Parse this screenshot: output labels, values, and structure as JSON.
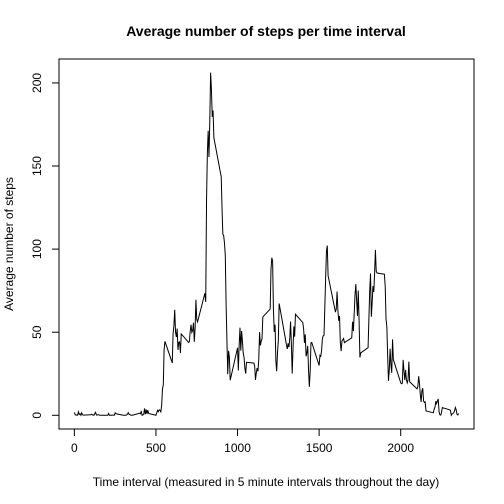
{
  "chart_data": {
    "type": "line",
    "title": "Average number of steps per time interval",
    "x_label": "Time interval (measured in 5 minute intervals throughout the day)",
    "y_label": "Average number of steps",
    "color": "#000000",
    "xlim": [
      -94.2,
      2449.2
    ],
    "xticks": [
      0,
      500,
      1000,
      1500,
      2000
    ],
    "ylim": [
      -8.25,
      214.4
    ],
    "yticks": [
      0,
      50,
      100,
      150,
      200
    ],
    "x": [
      0,
      5,
      10,
      15,
      20,
      25,
      30,
      35,
      40,
      45,
      50,
      55,
      100,
      105,
      110,
      115,
      120,
      125,
      130,
      135,
      140,
      145,
      150,
      155,
      200,
      205,
      210,
      215,
      220,
      225,
      230,
      235,
      240,
      245,
      250,
      255,
      300,
      305,
      310,
      315,
      320,
      325,
      330,
      335,
      340,
      345,
      350,
      355,
      400,
      405,
      410,
      415,
      420,
      425,
      430,
      435,
      440,
      445,
      450,
      455,
      500,
      505,
      510,
      515,
      520,
      525,
      530,
      535,
      540,
      545,
      550,
      555,
      600,
      605,
      610,
      615,
      620,
      625,
      630,
      635,
      640,
      645,
      650,
      655,
      700,
      705,
      710,
      715,
      720,
      725,
      730,
      735,
      740,
      745,
      750,
      755,
      800,
      805,
      810,
      815,
      820,
      825,
      830,
      835,
      840,
      845,
      850,
      855,
      900,
      905,
      910,
      915,
      920,
      925,
      930,
      935,
      940,
      945,
      950,
      955,
      1000,
      1005,
      1010,
      1015,
      1020,
      1025,
      1030,
      1035,
      1040,
      1045,
      1050,
      1055,
      1100,
      1105,
      1110,
      1115,
      1120,
      1125,
      1130,
      1135,
      1140,
      1145,
      1150,
      1155,
      1200,
      1205,
      1210,
      1215,
      1220,
      1225,
      1230,
      1235,
      1240,
      1245,
      1250,
      1255,
      1300,
      1305,
      1310,
      1315,
      1320,
      1325,
      1330,
      1335,
      1340,
      1345,
      1350,
      1355,
      1400,
      1405,
      1410,
      1415,
      1420,
      1425,
      1430,
      1435,
      1440,
      1445,
      1450,
      1455,
      1500,
      1505,
      1510,
      1515,
      1520,
      1525,
      1530,
      1535,
      1540,
      1545,
      1550,
      1555,
      1600,
      1605,
      1610,
      1615,
      1620,
      1625,
      1630,
      1635,
      1640,
      1645,
      1650,
      1655,
      1700,
      1705,
      1710,
      1715,
      1720,
      1725,
      1730,
      1735,
      1740,
      1745,
      1750,
      1755,
      1800,
      1805,
      1810,
      1815,
      1820,
      1825,
      1830,
      1835,
      1840,
      1845,
      1850,
      1855,
      1900,
      1905,
      1910,
      1915,
      1920,
      1925,
      1930,
      1935,
      1940,
      1945,
      1950,
      1955,
      2000,
      2005,
      2010,
      2015,
      2020,
      2025,
      2030,
      2035,
      2040,
      2045,
      2050,
      2055,
      2100,
      2105,
      2110,
      2115,
      2120,
      2125,
      2130,
      2135,
      2140,
      2145,
      2150,
      2155,
      2200,
      2205,
      2210,
      2215,
      2220,
      2225,
      2230,
      2235,
      2240,
      2245,
      2250,
      2255,
      2300,
      2305,
      2310,
      2315,
      2320,
      2325,
      2330,
      2335,
      2340,
      2345,
      2350,
      2355
    ],
    "values": [
      1.7,
      0.3,
      0.1,
      0.2,
      0.1,
      2.1,
      0.5,
      0.9,
      0,
      1.5,
      0.3,
      0.1,
      0.3,
      0.7,
      0.2,
      0.3,
      0,
      1.1,
      1.8,
      0.2,
      0.2,
      0.4,
      0.3,
      0,
      0,
      0,
      1.1,
      0,
      0,
      0.1,
      0,
      0.2,
      0,
      0,
      1.5,
      0.9,
      0,
      0,
      0,
      0,
      0.2,
      0.6,
      1.6,
      0.6,
      0.5,
      0.1,
      0,
      0,
      1.2,
      0.9,
      2.6,
      0,
      0.3,
      0.4,
      4.1,
      0.7,
      3.5,
      0.8,
      3.1,
      1.1,
      0,
      1.6,
      3,
      2.2,
      3.3,
      3,
      2.1,
      6.1,
      16,
      18.3,
      39.5,
      44.5,
      31.5,
      49.3,
      53.8,
      63.5,
      50,
      47.1,
      52.2,
      39.3,
      44,
      44.2,
      37.4,
      49,
      43.8,
      44.4,
      50.5,
      54.5,
      49.9,
      51,
      55.7,
      44.3,
      52.3,
      69.5,
      57.8,
      56.2,
      73.4,
      68.2,
      129.4,
      157.5,
      171.2,
      155.4,
      177.3,
      206.2,
      195.9,
      179.6,
      183.4,
      167,
      143.5,
      124,
      109.1,
      108.1,
      103.7,
      96,
      66.2,
      45.2,
      24.8,
      38.8,
      35,
      21.1,
      40.6,
      27,
      42.4,
      52.7,
      38.9,
      50.8,
      44.3,
      37.4,
      34.7,
      28.3,
      25.1,
      31.9,
      31.4,
      29.7,
      21.3,
      25.5,
      28.4,
      26.5,
      33.4,
      50,
      42,
      44.6,
      46,
      59.2,
      63.9,
      87.7,
      94.8,
      92.8,
      63.4,
      50.2,
      54.5,
      32.4,
      26.5,
      37.7,
      45.1,
      67.3,
      42.3,
      39.9,
      43.3,
      41,
      46.2,
      56.4,
      42.8,
      25.1,
      40,
      53.5,
      47.3,
      60.8,
      55.8,
      52,
      43.6,
      48.7,
      35.5,
      37.5,
      41.8,
      27.5,
      17.1,
      26.1,
      43.6,
      43.8,
      30,
      36.1,
      35.5,
      38.8,
      46,
      47.8,
      48.1,
      65.3,
      82.9,
      98.7,
      102.1,
      84,
      62.1,
      64.1,
      74.5,
      63.2,
      56.9,
      59.8,
      43.9,
      38.6,
      44.7,
      45.5,
      46.2,
      43.7,
      46.6,
      56.3,
      50.7,
      61.2,
      72.7,
      78.9,
      68.9,
      59.7,
      75.1,
      56.5,
      34.8,
      37.5,
      40.7,
      58,
      74.7,
      85.3,
      59.3,
      67.8,
      77.7,
      74.2,
      85.3,
      99.5,
      86.6,
      85.6,
      84.9,
      77.8,
      58,
      53.4,
      36.3,
      20.7,
      27.4,
      40,
      30.2,
      25.5,
      45.7,
      33.5,
      19.6,
      19,
      19.3,
      33.3,
      26.8,
      21.2,
      27.3,
      21.3,
      19.5,
      21.3,
      32.3,
      20.2,
      15.9,
      17.2,
      23.5,
      19.2,
      12.5,
      8,
      14.7,
      16.3,
      8.7,
      7.8,
      8.1,
      2.6,
      1.5,
      3.7,
      4.8,
      8.5,
      7.1,
      8.7,
      9.8,
      2.2,
      0.3,
      0.1,
      1.6,
      4.6,
      3.3,
      2.8,
      0,
      0.8,
      1,
      1.6,
      2.6,
      4.7,
      3.3,
      0.6,
      0.2,
      1.1
    ]
  }
}
